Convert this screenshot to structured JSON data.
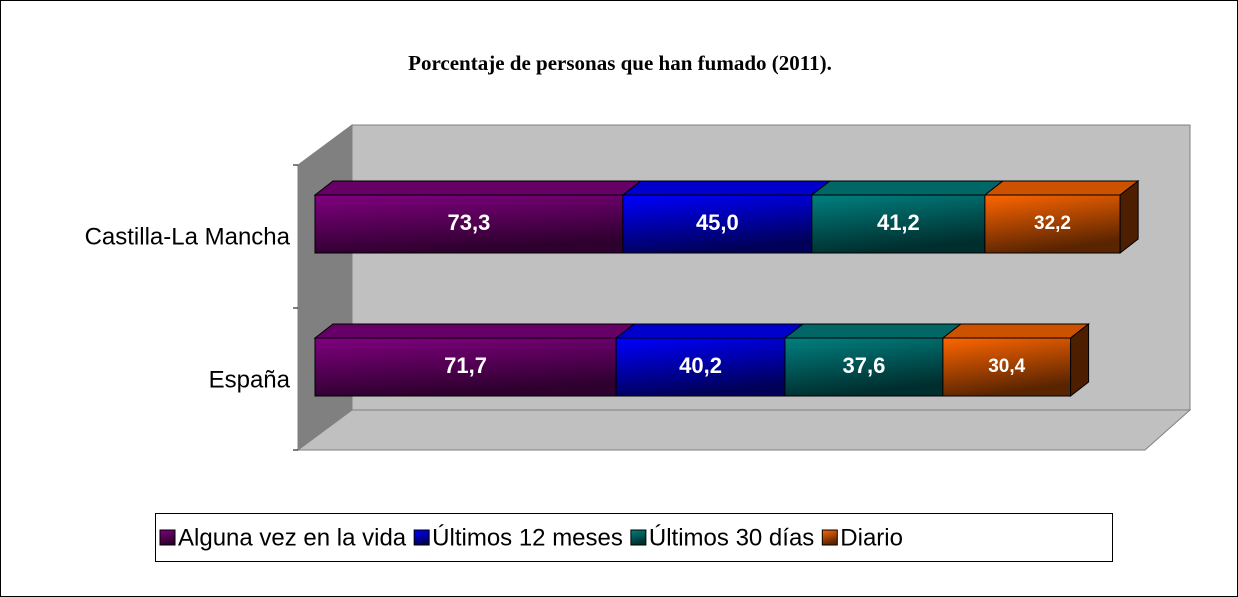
{
  "chart_data": {
    "type": "bar",
    "orientation": "horizontal",
    "stacked": true,
    "title": "Porcentaje de personas que han fumado (2011).",
    "categories": [
      "Castilla-La Mancha",
      "España"
    ],
    "series": [
      {
        "name": "Alguna vez en la vida",
        "color": "#800080",
        "values": [
          73.3,
          71.7
        ],
        "value_labels": [
          "73,3",
          "71,7"
        ]
      },
      {
        "name": "Últimos 12 meses",
        "color": "#0000ff",
        "values": [
          45.0,
          40.2
        ],
        "value_labels": [
          "45,0",
          "40,2"
        ]
      },
      {
        "name": "Últimos 30 días",
        "color": "#008080",
        "values": [
          41.2,
          37.6
        ],
        "value_labels": [
          "41,2",
          "37,6"
        ]
      },
      {
        "name": "Diario",
        "color": "#ff6600",
        "values": [
          32.2,
          30.4
        ],
        "value_labels": [
          "32,2",
          "30,4"
        ]
      }
    ],
    "legend": "bottom"
  }
}
